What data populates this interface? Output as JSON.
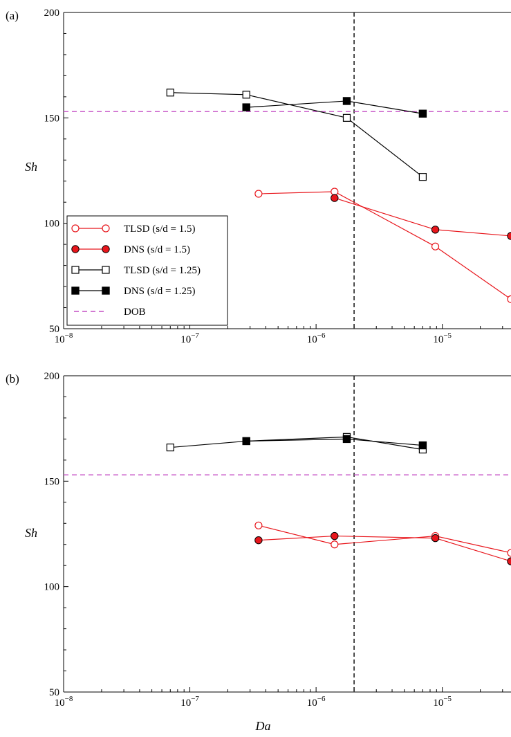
{
  "chart_data": [
    {
      "panel_label": "(a)",
      "type": "line",
      "xscale": "log",
      "xlim": [
        1e-08,
        3.5e-05
      ],
      "ylim": [
        50,
        200
      ],
      "xticks": [
        1e-08,
        1e-07,
        1e-06,
        1e-05
      ],
      "yticks": [
        50,
        100,
        150,
        200
      ],
      "xlabel": "",
      "ylabel": "Sh",
      "grid": false,
      "legend": "lower-left",
      "vline_x": 2e-06,
      "dob_y": 153,
      "series": [
        {
          "name": "TLSD (s/d = 1.5)",
          "color": "#e8161c",
          "marker": "open-circle",
          "x": [
            3.5e-07,
            1.4e-06,
            8.8e-06,
            3.5e-05
          ],
          "y": [
            114,
            115,
            89,
            64
          ]
        },
        {
          "name": "DNS (s/d = 1.5)",
          "color": "#e8161c",
          "marker": "filled-circle",
          "x": [
            1.4e-06,
            8.8e-06,
            3.5e-05
          ],
          "y": [
            112,
            97,
            94
          ]
        },
        {
          "name": "TLSD (s/d = 1.25)",
          "color": "#000000",
          "marker": "open-square",
          "x": [
            7e-08,
            2.8e-07,
            1.75e-06,
            7e-06
          ],
          "y": [
            162,
            161,
            150,
            122
          ]
        },
        {
          "name": "DNS (s/d = 1.25)",
          "color": "#000000",
          "marker": "filled-square",
          "x": [
            2.8e-07,
            1.75e-06,
            7e-06
          ],
          "y": [
            155,
            158,
            152
          ]
        },
        {
          "name": "DOB",
          "color": "#c44ec4",
          "marker": "dashed-line",
          "x": [],
          "y": []
        }
      ]
    },
    {
      "panel_label": "(b)",
      "type": "line",
      "xscale": "log",
      "xlim": [
        1e-08,
        3.5e-05
      ],
      "ylim": [
        50,
        200
      ],
      "xticks": [
        1e-08,
        1e-07,
        1e-06,
        1e-05
      ],
      "yticks": [
        50,
        100,
        150,
        200
      ],
      "xlabel": "Da",
      "ylabel": "Sh",
      "grid": false,
      "legend": "none",
      "vline_x": 2e-06,
      "dob_y": 153,
      "series": [
        {
          "color": "#e8161c",
          "marker": "open-circle",
          "x": [
            3.5e-07,
            1.4e-06,
            8.8e-06,
            3.5e-05
          ],
          "y": [
            129,
            120,
            124,
            116
          ]
        },
        {
          "color": "#e8161c",
          "marker": "filled-circle",
          "x": [
            3.5e-07,
            1.4e-06,
            8.8e-06,
            3.5e-05
          ],
          "y": [
            122,
            124,
            123,
            112
          ]
        },
        {
          "color": "#000000",
          "marker": "open-square",
          "x": [
            7e-08,
            2.8e-07,
            1.75e-06,
            7e-06
          ],
          "y": [
            166,
            169,
            171,
            165
          ]
        },
        {
          "color": "#000000",
          "marker": "filled-square",
          "x": [
            2.8e-07,
            1.75e-06,
            7e-06
          ],
          "y": [
            169,
            170,
            167
          ]
        }
      ]
    }
  ]
}
